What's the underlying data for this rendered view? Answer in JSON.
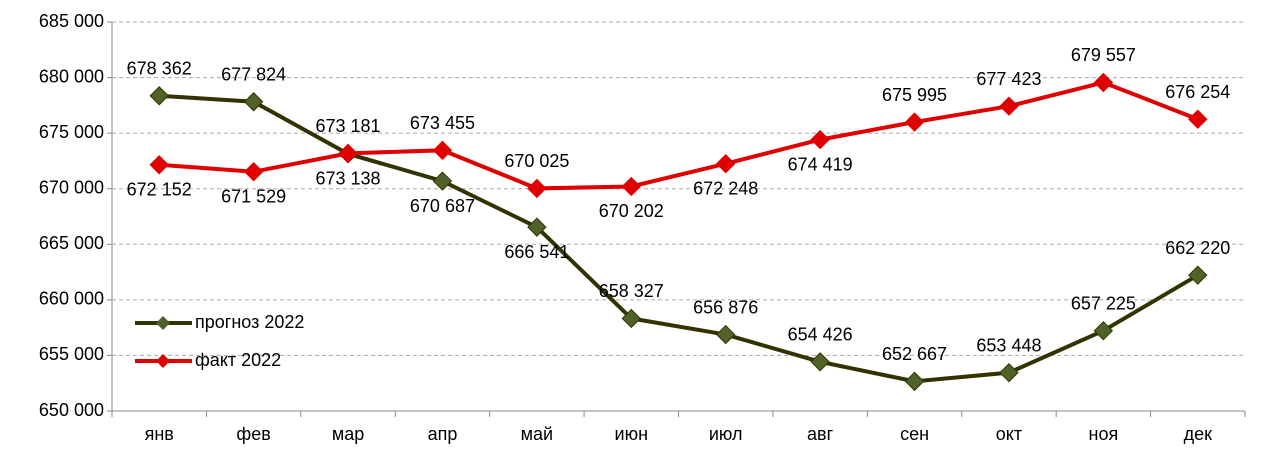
{
  "chart_data": {
    "type": "line",
    "categories": [
      "янв",
      "фев",
      "мар",
      "апр",
      "май",
      "июн",
      "июл",
      "авг",
      "сен",
      "окт",
      "ноя",
      "дек"
    ],
    "series": [
      {
        "name": "прогноз 2022",
        "color": "#4f6228",
        "line_color": "#333300",
        "values": [
          678362,
          677824,
          673138,
          670687,
          666541,
          658327,
          656876,
          654426,
          652667,
          653448,
          657225,
          662220
        ],
        "value_labels": [
          "678 362",
          "677 824",
          "673 138",
          "670 687",
          "666 541",
          "658 327",
          "656 876",
          "654 426",
          "652 667",
          "653 448",
          "657 225",
          "662 220"
        ]
      },
      {
        "name": "факт 2022",
        "color": "#e00000",
        "line_color": "#e00000",
        "values": [
          672152,
          671529,
          673181,
          673455,
          670025,
          670202,
          672248,
          674419,
          675995,
          677423,
          679557,
          676254
        ],
        "value_labels": [
          "672 152",
          "671 529",
          "673 181",
          "673 455",
          "670 025",
          "670 202",
          "672 248",
          "674 419",
          "675 995",
          "677 423",
          "679 557",
          "676 254"
        ]
      }
    ],
    "ylim": [
      650000,
      685000
    ],
    "yticks": [
      {
        "value": 650000,
        "label": "650 000"
      },
      {
        "value": 655000,
        "label": "655 000"
      },
      {
        "value": 660000,
        "label": "660 000"
      },
      {
        "value": 665000,
        "label": "665 000"
      },
      {
        "value": 670000,
        "label": "670 000"
      },
      {
        "value": 675000,
        "label": "675 000"
      },
      {
        "value": 680000,
        "label": "680 000"
      },
      {
        "value": 685000,
        "label": "685 000"
      }
    ],
    "grid": true,
    "legend": "left"
  }
}
